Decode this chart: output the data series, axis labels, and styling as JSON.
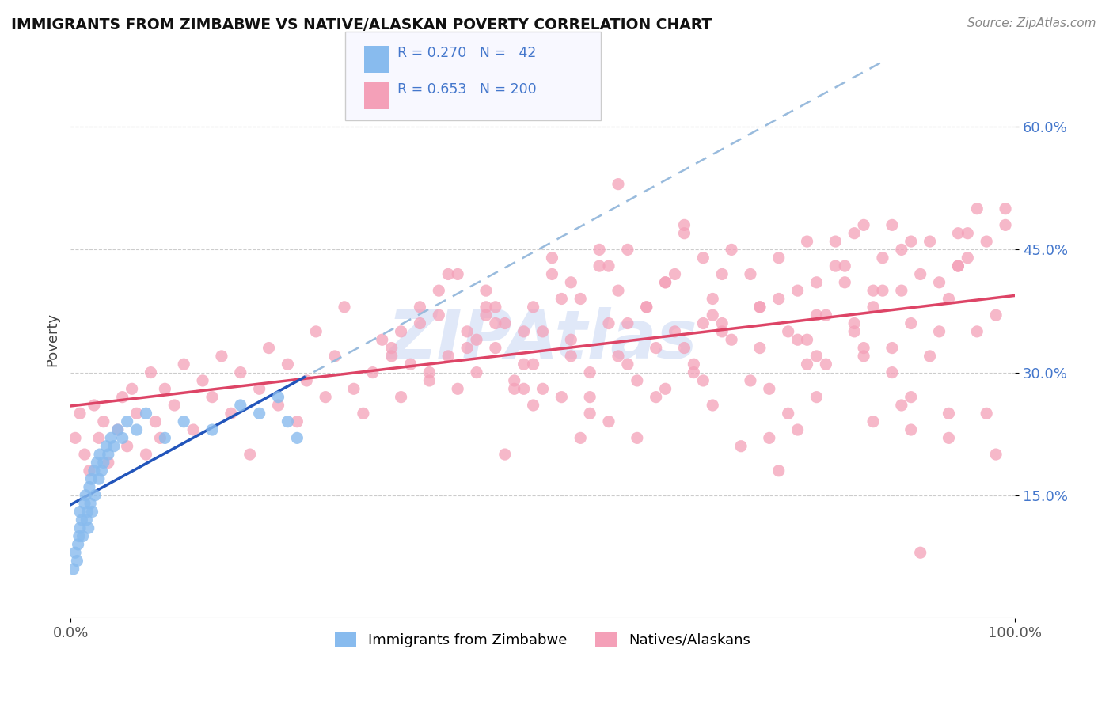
{
  "title": "IMMIGRANTS FROM ZIMBABWE VS NATIVE/ALASKAN POVERTY CORRELATION CHART",
  "source_text": "Source: ZipAtlas.com",
  "ylabel": "Poverty",
  "xlim": [
    0.0,
    1.0
  ],
  "ylim": [
    0.0,
    0.68
  ],
  "ytick_positions": [
    0.15,
    0.3,
    0.45,
    0.6
  ],
  "ytick_labels": [
    "15.0%",
    "30.0%",
    "45.0%",
    "60.0%"
  ],
  "color_zimbabwe": "#88BBEE",
  "color_native": "#F4A0B8",
  "color_line_zimbabwe": "#2255BB",
  "color_line_native": "#DD4466",
  "color_dashed": "#99BBDD",
  "background_color": "#FFFFFF",
  "grid_color": "#CCCCCC",
  "watermark_color": "#DDEEFF",
  "legend_box_color": "#F8F8FF",
  "legend_edge_color": "#CCCCCC",
  "tick_color": "#4477CC",
  "zim_x": [
    0.003,
    0.005,
    0.007,
    0.008,
    0.009,
    0.01,
    0.01,
    0.012,
    0.013,
    0.015,
    0.016,
    0.017,
    0.018,
    0.019,
    0.02,
    0.021,
    0.022,
    0.023,
    0.025,
    0.026,
    0.028,
    0.03,
    0.031,
    0.033,
    0.035,
    0.038,
    0.04,
    0.043,
    0.046,
    0.05,
    0.055,
    0.06,
    0.07,
    0.08,
    0.1,
    0.12,
    0.15,
    0.18,
    0.2,
    0.22,
    0.23,
    0.24
  ],
  "zim_y": [
    0.06,
    0.08,
    0.07,
    0.09,
    0.1,
    0.11,
    0.13,
    0.12,
    0.1,
    0.14,
    0.15,
    0.12,
    0.13,
    0.11,
    0.16,
    0.14,
    0.17,
    0.13,
    0.18,
    0.15,
    0.19,
    0.17,
    0.2,
    0.18,
    0.19,
    0.21,
    0.2,
    0.22,
    0.21,
    0.23,
    0.22,
    0.24,
    0.23,
    0.25,
    0.22,
    0.24,
    0.23,
    0.26,
    0.25,
    0.27,
    0.24,
    0.22
  ],
  "nat_x": [
    0.005,
    0.01,
    0.015,
    0.02,
    0.025,
    0.03,
    0.035,
    0.04,
    0.05,
    0.055,
    0.06,
    0.065,
    0.07,
    0.08,
    0.085,
    0.09,
    0.095,
    0.1,
    0.11,
    0.12,
    0.13,
    0.14,
    0.15,
    0.16,
    0.17,
    0.18,
    0.19,
    0.2,
    0.21,
    0.22,
    0.23,
    0.24,
    0.25,
    0.26,
    0.27,
    0.28,
    0.29,
    0.3,
    0.31,
    0.32,
    0.33,
    0.34,
    0.35,
    0.36,
    0.37,
    0.38,
    0.39,
    0.4,
    0.41,
    0.42,
    0.43,
    0.44,
    0.45,
    0.46,
    0.47,
    0.48,
    0.49,
    0.5,
    0.51,
    0.52,
    0.53,
    0.54,
    0.55,
    0.56,
    0.57,
    0.58,
    0.59,
    0.6,
    0.61,
    0.62,
    0.63,
    0.64,
    0.65,
    0.66,
    0.67,
    0.68,
    0.7,
    0.72,
    0.73,
    0.75,
    0.76,
    0.77,
    0.78,
    0.79,
    0.8,
    0.81,
    0.82,
    0.83,
    0.84,
    0.85,
    0.86,
    0.87,
    0.88,
    0.89,
    0.9,
    0.91,
    0.92,
    0.93,
    0.94,
    0.96
  ],
  "nat_y": [
    0.22,
    0.25,
    0.2,
    0.18,
    0.26,
    0.22,
    0.24,
    0.19,
    0.23,
    0.27,
    0.21,
    0.28,
    0.25,
    0.2,
    0.3,
    0.24,
    0.22,
    0.28,
    0.26,
    0.31,
    0.23,
    0.29,
    0.27,
    0.32,
    0.25,
    0.3,
    0.2,
    0.28,
    0.33,
    0.26,
    0.31,
    0.24,
    0.29,
    0.35,
    0.27,
    0.32,
    0.38,
    0.28,
    0.25,
    0.3,
    0.34,
    0.33,
    0.27,
    0.31,
    0.36,
    0.29,
    0.37,
    0.32,
    0.28,
    0.35,
    0.3,
    0.4,
    0.33,
    0.36,
    0.28,
    0.31,
    0.38,
    0.35,
    0.42,
    0.27,
    0.34,
    0.39,
    0.3,
    0.43,
    0.36,
    0.32,
    0.45,
    0.29,
    0.38,
    0.33,
    0.41,
    0.35,
    0.47,
    0.31,
    0.36,
    0.39,
    0.34,
    0.42,
    0.38,
    0.44,
    0.35,
    0.4,
    0.46,
    0.32,
    0.37,
    0.43,
    0.41,
    0.35,
    0.48,
    0.38,
    0.44,
    0.33,
    0.4,
    0.36,
    0.42,
    0.46,
    0.35,
    0.39,
    0.43,
    0.5
  ],
  "extra_nat_x": [
    0.58,
    0.65,
    0.75,
    0.55,
    0.45,
    0.4,
    0.35,
    0.5,
    0.6,
    0.7,
    0.8,
    0.9,
    0.95,
    0.85,
    0.78,
    0.68,
    0.72,
    0.82,
    0.88,
    0.92,
    0.53,
    0.62,
    0.67,
    0.73,
    0.77,
    0.83,
    0.87,
    0.93,
    0.97,
    0.42,
    0.48,
    0.52,
    0.57,
    0.63,
    0.69,
    0.74,
    0.79,
    0.84,
    0.89,
    0.94,
    0.99,
    0.46,
    0.56,
    0.66,
    0.76,
    0.86,
    0.96,
    0.44,
    0.54,
    0.64,
    0.74,
    0.84,
    0.94,
    0.49,
    0.59,
    0.69,
    0.79,
    0.89,
    0.99,
    0.43,
    0.47,
    0.51,
    0.61,
    0.71,
    0.81,
    0.91,
    0.98,
    0.41,
    0.55,
    0.65,
    0.75,
    0.85,
    0.95,
    0.38,
    0.48,
    0.58,
    0.68,
    0.78,
    0.88,
    0.98,
    0.45,
    0.53,
    0.63,
    0.73,
    0.83,
    0.93,
    0.37,
    0.57,
    0.67,
    0.77,
    0.87,
    0.97,
    0.39,
    0.49,
    0.59,
    0.69,
    0.79,
    0.89,
    0.34,
    0.44
  ],
  "extra_nat_y": [
    0.53,
    0.48,
    0.18,
    0.25,
    0.38,
    0.42,
    0.35,
    0.28,
    0.22,
    0.45,
    0.31,
    0.08,
    0.47,
    0.4,
    0.34,
    0.37,
    0.29,
    0.43,
    0.26,
    0.41,
    0.32,
    0.27,
    0.44,
    0.38,
    0.23,
    0.36,
    0.3,
    0.25,
    0.46,
    0.33,
    0.28,
    0.39,
    0.24,
    0.41,
    0.35,
    0.22,
    0.37,
    0.32,
    0.27,
    0.43,
    0.5,
    0.2,
    0.45,
    0.3,
    0.25,
    0.4,
    0.35,
    0.38,
    0.22,
    0.42,
    0.28,
    0.33,
    0.47,
    0.26,
    0.31,
    0.36,
    0.41,
    0.23,
    0.48,
    0.34,
    0.29,
    0.44,
    0.38,
    0.21,
    0.46,
    0.32,
    0.37,
    0.42,
    0.27,
    0.33,
    0.39,
    0.24,
    0.44,
    0.3,
    0.35,
    0.4,
    0.26,
    0.31,
    0.45,
    0.2,
    0.36,
    0.41,
    0.28,
    0.33,
    0.47,
    0.22,
    0.38,
    0.43,
    0.29,
    0.34,
    0.48,
    0.25,
    0.4,
    0.31,
    0.36,
    0.42,
    0.27,
    0.46,
    0.32,
    0.37
  ]
}
